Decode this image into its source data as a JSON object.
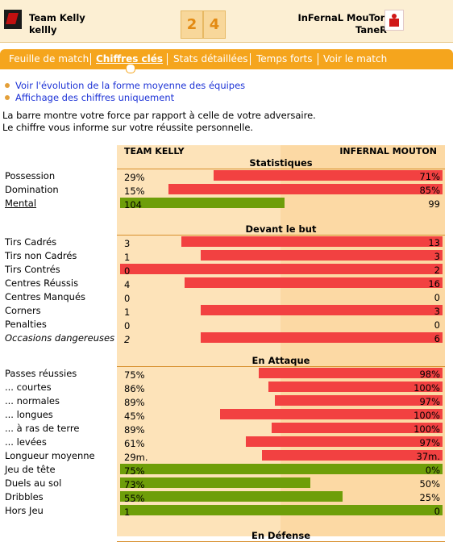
{
  "header": {
    "home_team": "Team Kelly",
    "home_manager": "kellly",
    "home_score": "2",
    "away_score": "4",
    "away_team": "InFernaL MouTon",
    "away_manager": "TaneR"
  },
  "tabs": [
    "Feuille de match",
    "Chiffres clés",
    "Stats détaillées",
    "Temps forts",
    "Voir le match"
  ],
  "active_tab": "Chiffres clés",
  "links": [
    "Voir l'évolution de la forme moyenne des équipes",
    "Affichage des chiffres uniquement"
  ],
  "info": [
    "La barre montre votre force par rapport à celle de votre adversaire.",
    "Le chiffre vous informe sur votre réussite personnelle."
  ],
  "columns": {
    "home": "TEAM KELLY",
    "away": "INFERNAL MOUTON"
  },
  "colors": {
    "red": "#f24141",
    "green": "#6e9e09",
    "orange": "#f5a51d"
  },
  "sections": [
    {
      "title": "Statistiques",
      "rows": [
        {
          "label": "Possession",
          "home": "29%",
          "away": "71%",
          "win": "away",
          "share": 0.71
        },
        {
          "label": "Domination",
          "home": "15%",
          "away": "85%",
          "win": "away",
          "share": 0.85
        },
        {
          "label": "Mental",
          "home": "104",
          "away": "99",
          "win": "home",
          "share": 0.51,
          "style": "underline"
        }
      ]
    },
    {
      "title": "Devant le but",
      "rows": [
        {
          "label": "Tirs Cadrés",
          "home": "3",
          "away": "13",
          "win": "away",
          "share": 0.81
        },
        {
          "label": "Tirs non Cadrés",
          "home": "1",
          "away": "3",
          "win": "away",
          "share": 0.75
        },
        {
          "label": "Tirs Contrés",
          "home": "0",
          "away": "2",
          "win": "away",
          "share": 1.0
        },
        {
          "label": "Centres Réussis",
          "home": "4",
          "away": "16",
          "win": "away",
          "share": 0.8
        },
        {
          "label": "Centres Manqués",
          "home": "0",
          "away": "0",
          "win": "none",
          "share": 0
        },
        {
          "label": "Corners",
          "home": "1",
          "away": "3",
          "win": "away",
          "share": 0.75
        },
        {
          "label": "Penalties",
          "home": "0",
          "away": "0",
          "win": "none",
          "share": 0
        },
        {
          "label": "Occasions dangereuses",
          "home": "2",
          "away": "6",
          "win": "away",
          "share": 0.75,
          "style": "italic"
        }
      ]
    },
    {
      "title": "En Attaque",
      "rows": [
        {
          "label": "Passes réussies",
          "home": "75%",
          "away": "98%",
          "win": "away",
          "share": 0.57
        },
        {
          "label": "... courtes",
          "home": "86%",
          "away": "100%",
          "win": "away",
          "share": 0.54
        },
        {
          "label": "... normales",
          "home": "89%",
          "away": "97%",
          "win": "away",
          "share": 0.52
        },
        {
          "label": "... longues",
          "home": "45%",
          "away": "100%",
          "win": "away",
          "share": 0.69
        },
        {
          "label": "... à ras de terre",
          "home": "89%",
          "away": "100%",
          "win": "away",
          "share": 0.53
        },
        {
          "label": "... levées",
          "home": "61%",
          "away": "97%",
          "win": "away",
          "share": 0.61
        },
        {
          "label": "Longueur moyenne",
          "home": "29m.",
          "away": "37m.",
          "win": "away",
          "share": 0.56
        },
        {
          "label": "Jeu de tête",
          "home": "75%",
          "away": "0%",
          "win": "home",
          "share": 1.0
        },
        {
          "label": "Duels au sol",
          "home": "73%",
          "away": "50%",
          "win": "home",
          "share": 0.59
        },
        {
          "label": "Dribbles",
          "home": "55%",
          "away": "25%",
          "win": "home",
          "share": 0.69
        },
        {
          "label": "Hors Jeu",
          "home": "1",
          "away": "0",
          "win": "home",
          "share": 1.0
        }
      ]
    },
    {
      "title": "En Défense",
      "rows": []
    }
  ]
}
